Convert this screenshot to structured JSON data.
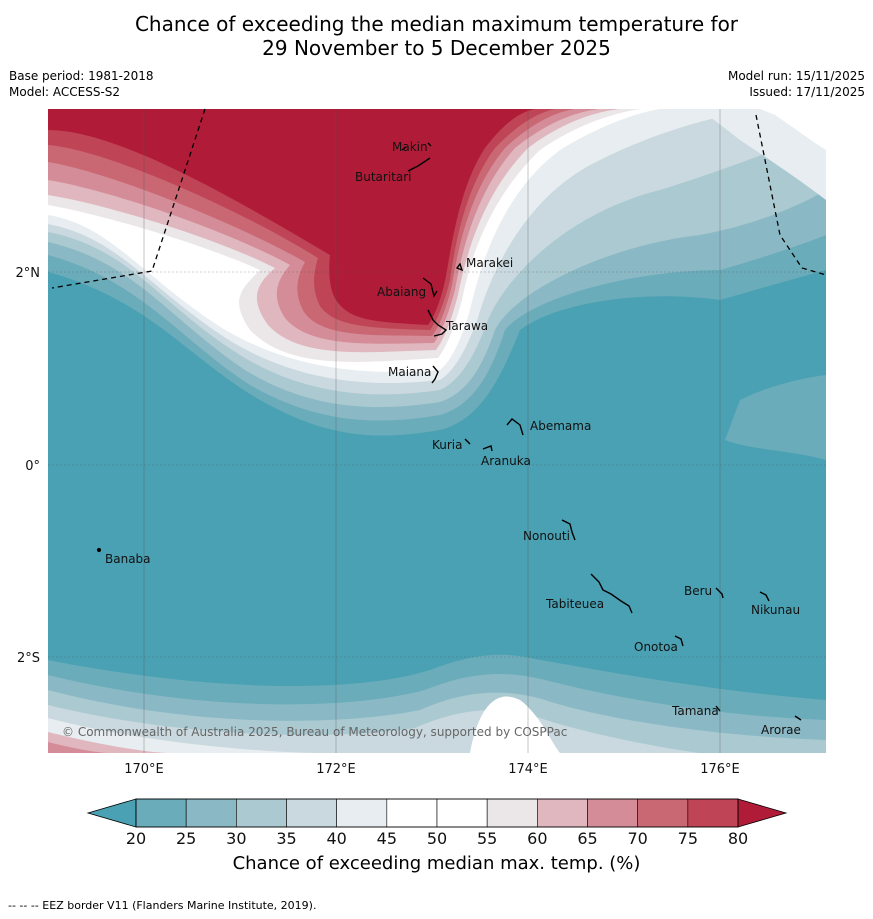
{
  "title_line1": "Chance of exceeding the median maximum temperature for",
  "title_line2": "29 November to 5 December 2025",
  "base_period": "Base period: 1981-2018",
  "model": "Model: ACCESS-S2",
  "model_run": "Model run: 15/11/2025",
  "issued": "Issued: 17/11/2025",
  "copyright": "© Commonwealth of Australia 2025, Bureau of Meteorology, supported by COSPPac",
  "lon_ticks": [
    "170°E",
    "172°E",
    "174°E",
    "176°E"
  ],
  "lat_ticks": [
    "2°N",
    "0°",
    "2°S"
  ],
  "places": [
    "Makin",
    "Butaritari",
    "Marakei",
    "Abaiang",
    "Tarawa",
    "Maiana",
    "Abemama",
    "Kuria",
    "Aranuka",
    "Nonouti",
    "Banaba",
    "Beru",
    "Nikunau",
    "Tabiteuea",
    "Onotoa",
    "Tamana",
    "Arorae"
  ],
  "colorbar": {
    "ticks": [
      "20",
      "25",
      "30",
      "35",
      "40",
      "45",
      "50",
      "55",
      "60",
      "65",
      "70",
      "75",
      "80"
    ],
    "colors": [
      "#6aacba",
      "#8ab9c5",
      "#aac9d1",
      "#c9d9df",
      "#e7edf0",
      "#ffffff",
      "#ffffff",
      "#ebe7e9",
      "#e0b7bf",
      "#d48d98",
      "#c96772",
      "#bf4455"
    ],
    "low_color": "#4aa1b3",
    "high_color": "#b01c38",
    "label": "Chance of exceeding median max. temp. (%)"
  },
  "footnote": "--  --  -- EEZ border V11 (Flanders Marine Institute, 2019)."
}
